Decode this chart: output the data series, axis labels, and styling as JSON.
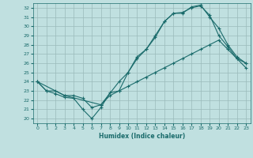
{
  "title": "",
  "xlabel": "Humidex (Indice chaleur)",
  "bg_color": "#c0e0e0",
  "line_color": "#1a6b6b",
  "grid_color": "#9ababa",
  "xlim": [
    -0.5,
    23.5
  ],
  "ylim": [
    19.5,
    32.5
  ],
  "xticks": [
    0,
    1,
    2,
    3,
    4,
    5,
    6,
    7,
    8,
    9,
    10,
    11,
    12,
    13,
    14,
    15,
    16,
    17,
    18,
    19,
    20,
    21,
    22,
    23
  ],
  "yticks": [
    20,
    21,
    22,
    23,
    24,
    25,
    26,
    27,
    28,
    29,
    30,
    31,
    32
  ],
  "line1_x": [
    0,
    1,
    2,
    3,
    4,
    5,
    6,
    7,
    8,
    9,
    10,
    11,
    12,
    13,
    14,
    15,
    16,
    17,
    18,
    19,
    20,
    21,
    22,
    23
  ],
  "line1_y": [
    24.0,
    23.0,
    22.7,
    22.3,
    22.2,
    21.0,
    20.0,
    21.2,
    22.8,
    23.0,
    25.0,
    26.7,
    27.5,
    28.8,
    30.5,
    31.4,
    31.4,
    32.1,
    32.3,
    31.0,
    29.8,
    28.0,
    26.7,
    26.0
  ],
  "line2_x": [
    0,
    1,
    2,
    3,
    4,
    5,
    6,
    7,
    8,
    9,
    10,
    11,
    12,
    13,
    14,
    15,
    16,
    17,
    18,
    19,
    20,
    21,
    22,
    23
  ],
  "line2_y": [
    24.0,
    23.0,
    23.0,
    22.5,
    22.5,
    22.2,
    21.2,
    21.5,
    22.5,
    23.0,
    23.5,
    24.0,
    24.5,
    25.0,
    25.5,
    26.0,
    26.5,
    27.0,
    27.5,
    28.0,
    28.5,
    27.5,
    26.5,
    26.0
  ],
  "line3_x": [
    0,
    3,
    7,
    9,
    10,
    11,
    12,
    13,
    14,
    15,
    16,
    17,
    18,
    19,
    20,
    21,
    22,
    23
  ],
  "line3_y": [
    24.0,
    22.5,
    21.5,
    24.0,
    25.0,
    26.5,
    27.5,
    29.0,
    30.5,
    31.4,
    31.5,
    32.0,
    32.2,
    31.2,
    29.0,
    27.8,
    26.5,
    25.5
  ]
}
